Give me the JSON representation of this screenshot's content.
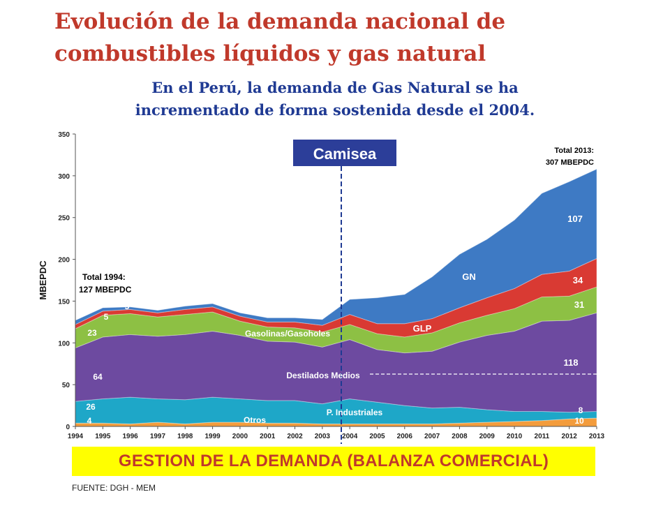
{
  "slide": {
    "title": "Evolución de la demanda nacional de combustibles líquidos y gas natural",
    "subtitle": "En el Perú, la demanda de Gas Natural se ha incrementado de forma sostenida desde el 2004.",
    "banner": "GESTION DE LA DEMANDA (BALANZA COMERCIAL)",
    "source": "FUENTE: DGH - MEM"
  },
  "chart_data": {
    "type": "area",
    "stacked": true,
    "ylabel": "MBEPDC",
    "xlabel": "",
    "ylim": [
      0,
      350
    ],
    "yticks": [
      0,
      50,
      100,
      150,
      200,
      250,
      300,
      350
    ],
    "grid": false,
    "categories": [
      "1994",
      "1995",
      "1996",
      "1997",
      "1998",
      "1999",
      "2000",
      "2001",
      "2002",
      "2003",
      "2004",
      "2005",
      "2006",
      "2007",
      "2008",
      "2009",
      "2010",
      "2011",
      "2012",
      "2013"
    ],
    "series": [
      {
        "name": "Otros",
        "color": "#f39c3c",
        "values": [
          4,
          4,
          3,
          5,
          3,
          5,
          5,
          4,
          4,
          3,
          3,
          3,
          3,
          3,
          4,
          5,
          6,
          7,
          9,
          10
        ]
      },
      {
        "name": "P. Industriales",
        "color": "#1ea7c8",
        "values": [
          26,
          29,
          32,
          28,
          29,
          30,
          28,
          27,
          27,
          24,
          30,
          26,
          22,
          19,
          19,
          15,
          12,
          11,
          8,
          8
        ]
      },
      {
        "name": "Destilados Medios",
        "color": "#6d4aa0",
        "values": [
          64,
          74,
          75,
          75,
          78,
          79,
          76,
          71,
          70,
          68,
          71,
          63,
          63,
          68,
          78,
          89,
          96,
          108,
          110,
          118
        ]
      },
      {
        "name": "Gasolinas/Gasoholes",
        "color": "#8dc044",
        "values": [
          23,
          26,
          25,
          23,
          24,
          23,
          17,
          17,
          17,
          18,
          18,
          19,
          19,
          22,
          23,
          24,
          27,
          29,
          29,
          31
        ]
      },
      {
        "name": "GLP",
        "color": "#d93a33",
        "values": [
          5,
          5,
          5,
          5,
          6,
          6,
          6,
          6,
          7,
          8,
          12,
          12,
          16,
          17,
          18,
          21,
          24,
          27,
          30,
          34
        ]
      },
      {
        "name": "GN",
        "color": "#3e7ac4",
        "values": [
          5,
          4,
          3,
          3,
          4,
          4,
          4,
          5,
          5,
          7,
          18,
          31,
          35,
          50,
          64,
          70,
          82,
          97,
          107,
          107
        ]
      }
    ],
    "annotations": [
      {
        "text": "Total 1994:",
        "text2": "127 MBEPDC"
      },
      {
        "text": "Total 2013:",
        "text2": "307 MBEPDC"
      },
      {
        "text": "Camisea",
        "year": "2004"
      }
    ],
    "value_labels": {
      "start": [
        "4",
        "26",
        "64",
        "23",
        "5",
        "5"
      ],
      "end": [
        "10",
        "8",
        "118",
        "31",
        "34",
        "107"
      ]
    }
  }
}
